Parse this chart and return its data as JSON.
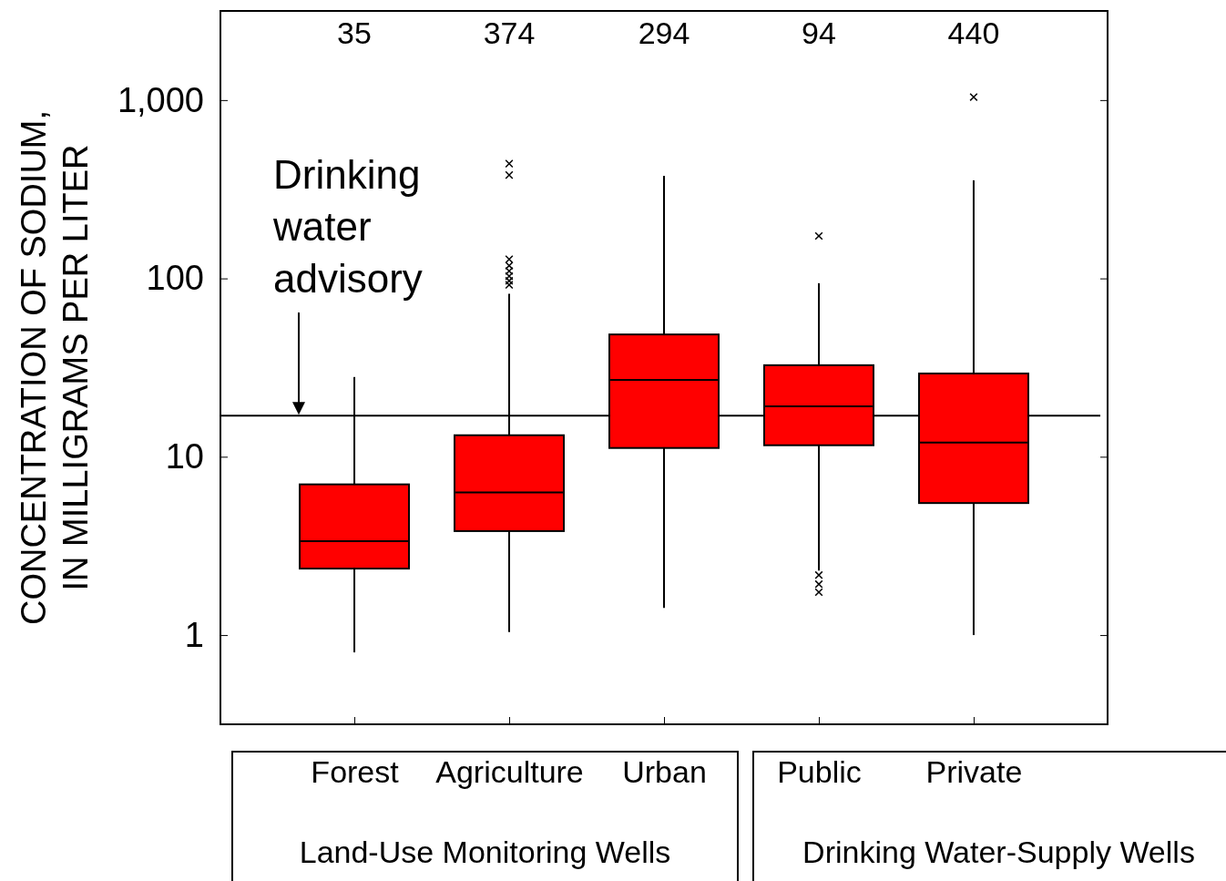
{
  "chart_data": {
    "type": "box",
    "ylabel": "CONCENTRATION OF SODIUM,\nIN MILLIGRAMS PER LITER",
    "categories": [
      "Forest",
      "Agriculture",
      "Urban",
      "Public",
      "Private"
    ],
    "boxes": [
      {
        "low": 0.8,
        "q1": 2.36,
        "median": 3.36,
        "q3": 7,
        "high": 28
      },
      {
        "low": 1.04,
        "q1": 3.83,
        "median": 6.3,
        "q3": 13.2,
        "high": 82,
        "outliers": [
          92,
          97,
          103,
          110,
          118,
          128,
          380,
          440
        ]
      },
      {
        "low": 1.42,
        "q1": 11.2,
        "median": 27,
        "q3": 48.5,
        "high": 376
      },
      {
        "low": 2.3,
        "q1": 11.6,
        "median": 19.2,
        "q3": 32.6,
        "high": 94,
        "outliers": [
          173,
          2.17,
          1.93,
          1.74
        ]
      },
      {
        "low": 1.0,
        "q1": 5.5,
        "median": 12,
        "q3": 29.3,
        "high": 355,
        "outliers": [
          1040
        ]
      }
    ],
    "color": "#ff0000",
    "marker": "cross",
    "log": true,
    "ylim": [
      0.316,
      3162
    ],
    "yticks": [
      1,
      10,
      100,
      {
        "value": 1000,
        "label": "1,000"
      }
    ],
    "grid": false,
    "ref_lines": [
      {
        "axis": "y",
        "value": 17,
        "label": "Drinking\nwater\nadvisory"
      }
    ],
    "annotations": [
      "35",
      "374",
      "294",
      "94",
      "440",
      "Land-Use Monitoring Wells",
      "Drinking Water-Supply Wells"
    ]
  }
}
